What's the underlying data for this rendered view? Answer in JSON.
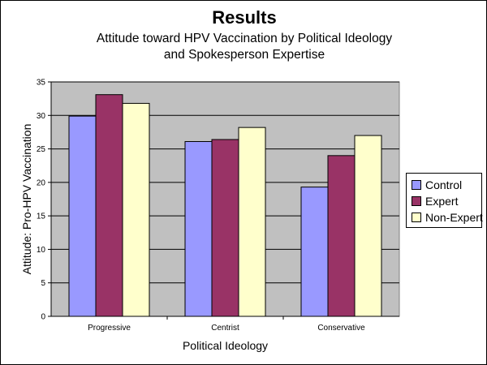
{
  "chart_data": {
    "type": "bar",
    "title": "Results",
    "subtitle_lines": [
      "Attitude toward HPV Vaccination by Political Ideology",
      "and Spokesperson Expertise"
    ],
    "xlabel": "Political Ideology",
    "ylabel": "Attitude:  Pro-HPV Vaccination",
    "categories": [
      "Progressive",
      "Centrist",
      "Conservative"
    ],
    "ylim": [
      0,
      35
    ],
    "yticks": [
      0,
      5,
      10,
      15,
      20,
      25,
      30,
      35
    ],
    "grid": true,
    "plot_background": "#c0c0c0",
    "legend_position": "right",
    "series": [
      {
        "name": "Control",
        "color": "#9999ff",
        "values": [
          29.9,
          26.1,
          19.3
        ]
      },
      {
        "name": "Expert",
        "color": "#993366",
        "values": [
          33.1,
          26.4,
          24.0
        ]
      },
      {
        "name": "Non-Expert",
        "color": "#ffffcc",
        "values": [
          31.8,
          28.2,
          27.0
        ]
      }
    ]
  }
}
